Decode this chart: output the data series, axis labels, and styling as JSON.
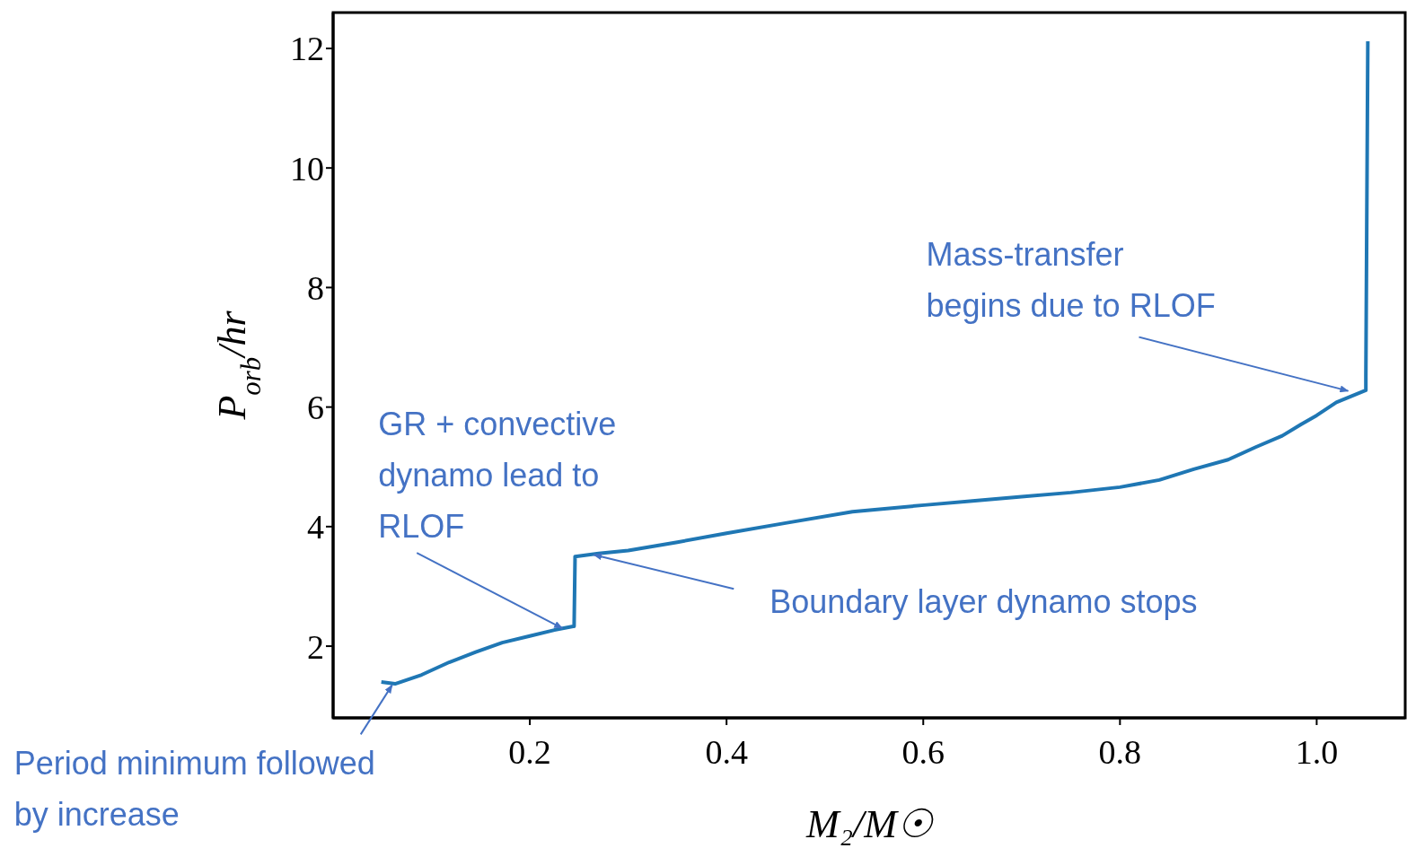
{
  "chart_data": {
    "type": "line",
    "xlabel": "M₂/M☉",
    "ylabel": "P$_{orb}$/hr",
    "x": [
      0.049,
      0.063,
      0.09,
      0.118,
      0.145,
      0.172,
      0.2,
      0.225,
      0.244,
      0.245,
      0.246,
      0.27,
      0.3,
      0.35,
      0.4,
      0.46,
      0.528,
      0.601,
      0.65,
      0.7,
      0.75,
      0.8,
      0.84,
      0.875,
      0.91,
      0.938,
      0.965,
      0.984,
      1.0,
      1.02,
      1.035,
      1.05,
      1.05,
      1.052
    ],
    "series": [
      {
        "color": "#1f77b4",
        "values": [
          1.4,
          1.37,
          1.52,
          1.73,
          1.9,
          2.06,
          2.17,
          2.27,
          2.33,
          2.33,
          3.5,
          3.55,
          3.6,
          3.74,
          3.89,
          4.06,
          4.25,
          4.36,
          4.43,
          4.5,
          4.57,
          4.66,
          4.78,
          4.96,
          5.12,
          5.33,
          5.52,
          5.71,
          5.86,
          6.08,
          6.18,
          6.28,
          6.5,
          12.12
        ]
      }
    ],
    "xlim": [
      0,
      1.09
    ],
    "ylim": [
      0.8,
      12.6
    ],
    "xticks": [
      0.2,
      0.4,
      0.6,
      0.8,
      {
        "value": 1,
        "label": "1.0"
      }
    ],
    "yticks": [
      2,
      4,
      6,
      8,
      10,
      12
    ],
    "marker": "none",
    "line_style": "solid",
    "annotations": [
      {
        "text": "Mass-transfer\nbegins due to RLOF",
        "x": 1.032,
        "y": 6.27
      },
      {
        "text": "GR + convective\ndynamo lead to\nRLOF",
        "x": 0.233,
        "y": 2.3
      },
      {
        "text": "Boundary layer dynamo stops",
        "x": 0.265,
        "y": 3.53
      },
      {
        "text": "Period minimum followed\nby increase",
        "x": 0.06,
        "y": 1.35
      }
    ]
  }
}
